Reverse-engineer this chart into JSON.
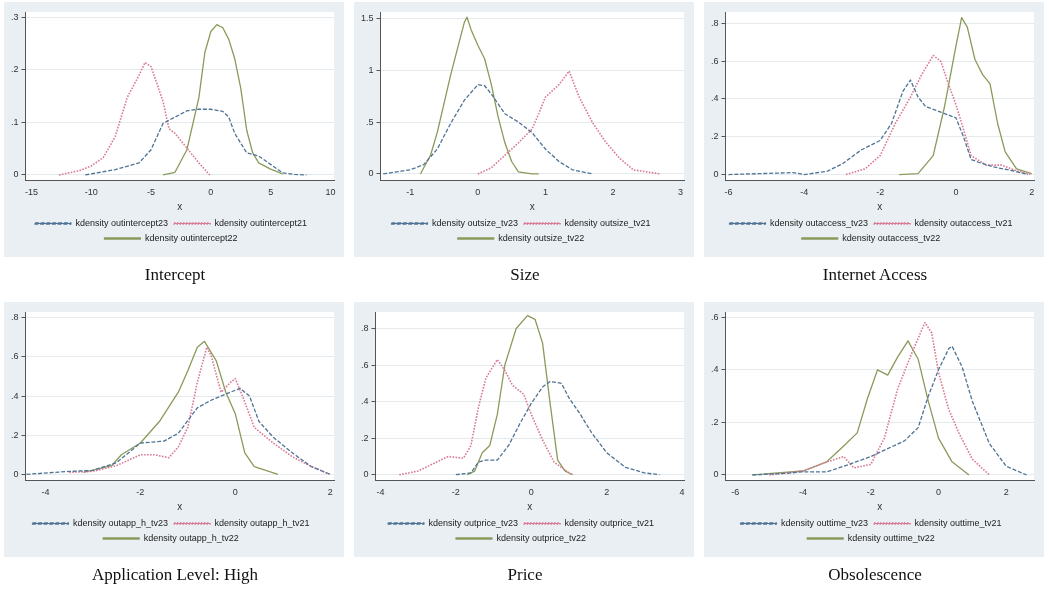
{
  "chart_data": [
    {
      "type": "line",
      "title": "Intercept",
      "xlabel": "x",
      "xlim": [
        -15.5,
        10.3
      ],
      "xticks": [
        -15,
        -10,
        -5,
        0,
        5,
        10
      ],
      "ylim": [
        -0.01,
        0.31
      ],
      "yticks": [
        0,
        {
          "value": 0.1,
          "label": ".1"
        },
        {
          "value": 0.2,
          "label": ".2"
        },
        {
          "value": 0.3,
          "label": ".3"
        }
      ],
      "grid": "y",
      "legend": "bottom",
      "series": [
        {
          "name": "kdensity outintercept23",
          "color": "#4f7394",
          "line_style": "dashed",
          "x": [
            -10.5,
            -8,
            -6,
            -5,
            -4,
            -3,
            -2,
            -1,
            0,
            1,
            1.5,
            2,
            3,
            4,
            5,
            6,
            7,
            8
          ],
          "values": [
            0,
            0.01,
            0.023,
            0.048,
            0.098,
            0.11,
            0.122,
            0.125,
            0.125,
            0.121,
            0.11,
            0.079,
            0.042,
            0.036,
            0.02,
            0.004,
            0.001,
            0
          ]
        },
        {
          "name": "kdensity outintercept21",
          "color": "#d97a94",
          "line_style": "dotted",
          "x": [
            -12.7,
            -11,
            -10,
            -9,
            -8,
            -7,
            -6,
            -5.5,
            -5,
            -4,
            -3.5,
            -3,
            -2,
            -1,
            -0.1
          ],
          "values": [
            0,
            0.008,
            0.017,
            0.033,
            0.073,
            0.147,
            0.19,
            0.214,
            0.206,
            0.14,
            0.088,
            0.079,
            0.051,
            0.023,
            0
          ]
        },
        {
          "name": "kdensity outintercept22",
          "color": "#8a9a5b",
          "line_style": "solid",
          "x": [
            -4,
            -3,
            -2,
            -1,
            -0.5,
            0,
            0.5,
            1,
            1.5,
            2,
            2.5,
            3,
            3.5,
            4,
            5,
            6
          ],
          "values": [
            0,
            0.005,
            0.048,
            0.147,
            0.233,
            0.273,
            0.286,
            0.28,
            0.258,
            0.221,
            0.165,
            0.085,
            0.042,
            0.023,
            0.011,
            0.002
          ]
        }
      ]
    },
    {
      "type": "line",
      "title": "Size",
      "xlabel": "x",
      "xlim": [
        -1.44,
        3.05
      ],
      "xticks": [
        -1,
        0,
        1,
        2,
        3
      ],
      "ylim": [
        -0.06,
        1.56
      ],
      "yticks": [
        0,
        {
          "value": 0.5,
          "label": ".5"
        },
        1,
        1.5
      ],
      "grid": "y",
      "legend": "bottom",
      "series": [
        {
          "name": "kdensity outsize_tv23",
          "color": "#4f7394",
          "line_style": "dashed",
          "x": [
            -1.4,
            -1,
            -0.8,
            -0.6,
            -0.4,
            -0.2,
            0,
            0.1,
            0.2,
            0.4,
            0.6,
            0.8,
            1,
            1.2,
            1.4,
            1.7
          ],
          "values": [
            0,
            0.04,
            0.09,
            0.24,
            0.49,
            0.71,
            0.86,
            0.85,
            0.77,
            0.58,
            0.5,
            0.4,
            0.24,
            0.12,
            0.04,
            0
          ]
        },
        {
          "name": "kdensity outsize_tv21",
          "color": "#d97a94",
          "line_style": "dotted",
          "x": [
            0,
            0.2,
            0.4,
            0.6,
            0.8,
            0.9,
            1,
            1.1,
            1.2,
            1.35,
            1.5,
            1.7,
            1.9,
            2.1,
            2.3,
            2.5,
            2.7
          ],
          "values": [
            0,
            0.06,
            0.18,
            0.3,
            0.43,
            0.58,
            0.74,
            0.8,
            0.86,
            0.99,
            0.74,
            0.49,
            0.3,
            0.15,
            0.04,
            0.02,
            0
          ]
        },
        {
          "name": "kdensity outsize_tv22",
          "color": "#8a9a5b",
          "line_style": "solid",
          "x": [
            -0.85,
            -0.7,
            -0.6,
            -0.4,
            -0.2,
            -0.16,
            -0.1,
            0,
            0.1,
            0.2,
            0.3,
            0.4,
            0.5,
            0.6,
            0.8,
            0.9
          ],
          "values": [
            0,
            0.18,
            0.4,
            0.96,
            1.46,
            1.51,
            1.39,
            1.24,
            1.11,
            0.86,
            0.55,
            0.3,
            0.12,
            0.02,
            0,
            0
          ]
        }
      ]
    },
    {
      "type": "line",
      "title": "Internet Access",
      "xlabel": "x",
      "xlim": [
        -6.08,
        2.06
      ],
      "xticks": [
        -6,
        -4,
        -2,
        0,
        2
      ],
      "ylim": [
        -0.03,
        0.86
      ],
      "yticks": [
        0,
        {
          "value": 0.2,
          "label": ".2"
        },
        {
          "value": 0.4,
          "label": ".4"
        },
        {
          "value": 0.6,
          "label": ".6"
        },
        {
          "value": 0.8,
          "label": ".8"
        }
      ],
      "grid": "y",
      "legend": "bottom",
      "series": [
        {
          "name": "kdensity outaccess_tv23",
          "color": "#4f7394",
          "line_style": "dashed",
          "x": [
            -6,
            -4.3,
            -4,
            -3.4,
            -3,
            -2.5,
            -2,
            -1.7,
            -1.4,
            -1.2,
            -1,
            -0.8,
            -0.4,
            0,
            0.2,
            0.4,
            0.6,
            1,
            1.5,
            1.9
          ],
          "values": [
            0,
            0.01,
            0,
            0.017,
            0.056,
            0.13,
            0.18,
            0.27,
            0.44,
            0.5,
            0.41,
            0.36,
            0.33,
            0.3,
            0.2,
            0.08,
            0.065,
            0.04,
            0.02,
            0
          ]
        },
        {
          "name": "kdensity outaccess_tv21",
          "color": "#d97a94",
          "line_style": "dotted",
          "x": [
            -2.9,
            -2.4,
            -2,
            -1.6,
            -1.2,
            -0.9,
            -0.6,
            -0.4,
            -0.2,
            0,
            0.2,
            0.4,
            0.8,
            1.2,
            1.6,
            2
          ],
          "values": [
            0,
            0.03,
            0.1,
            0.27,
            0.41,
            0.53,
            0.63,
            0.6,
            0.48,
            0.37,
            0.24,
            0.1,
            0.05,
            0.05,
            0.02,
            0
          ]
        },
        {
          "name": "kdensity outaccess_tv22",
          "color": "#8a9a5b",
          "line_style": "solid",
          "x": [
            -1.5,
            -1,
            -0.6,
            -0.3,
            0,
            0.15,
            0.3,
            0.5,
            0.7,
            0.9,
            1.1,
            1.3,
            1.6,
            2
          ],
          "values": [
            0,
            0.005,
            0.1,
            0.36,
            0.68,
            0.83,
            0.78,
            0.61,
            0.53,
            0.48,
            0.27,
            0.12,
            0.03,
            0.005
          ]
        }
      ]
    },
    {
      "type": "line",
      "title": "Application Level: High",
      "xlabel": "x",
      "xlim": [
        -4.42,
        2.08
      ],
      "xticks": [
        -4,
        -2,
        0,
        2
      ],
      "ylim": [
        -0.03,
        0.83
      ],
      "yticks": [
        0,
        {
          "value": 0.2,
          "label": ".2"
        },
        {
          "value": 0.4,
          "label": ".4"
        },
        {
          "value": 0.6,
          "label": ".6"
        },
        {
          "value": 0.8,
          "label": ".8"
        }
      ],
      "grid": "y",
      "legend": "bottom",
      "series": [
        {
          "name": "kdensity outapp_h_tv23",
          "color": "#4f7394",
          "line_style": "dashed",
          "x": [
            -4.4,
            -3.5,
            -3,
            -2.5,
            -2,
            -1.5,
            -1.2,
            -0.8,
            -0.5,
            -0.2,
            0.1,
            0.3,
            0.5,
            0.8,
            1.2,
            1.6,
            2
          ],
          "values": [
            0,
            0.015,
            0.02,
            0.06,
            0.16,
            0.17,
            0.21,
            0.34,
            0.38,
            0.41,
            0.44,
            0.4,
            0.27,
            0.19,
            0.11,
            0.04,
            0
          ]
        },
        {
          "name": "kdensity outapp_h_tv21",
          "color": "#d97a94",
          "line_style": "dotted",
          "x": [
            -3.5,
            -3,
            -2.5,
            -2,
            -1.7,
            -1.4,
            -1.2,
            -1,
            -0.8,
            -0.6,
            -0.5,
            -0.3,
            -0.1,
            0,
            0.2,
            0.4,
            0.8,
            1.2,
            1.6,
            2
          ],
          "values": [
            0.01,
            0.015,
            0.045,
            0.1,
            0.1,
            0.085,
            0.14,
            0.24,
            0.47,
            0.65,
            0.6,
            0.42,
            0.47,
            0.49,
            0.37,
            0.24,
            0.16,
            0.09,
            0.04,
            0
          ]
        },
        {
          "name": "kdensity outapp_h_tv22",
          "color": "#8a9a5b",
          "line_style": "solid",
          "x": [
            -3.2,
            -2.6,
            -2.4,
            -2,
            -1.6,
            -1.2,
            -1,
            -0.8,
            -0.65,
            -0.4,
            -0.2,
            0,
            0.2,
            0.4,
            0.9
          ],
          "values": [
            0.01,
            0.045,
            0.1,
            0.16,
            0.27,
            0.42,
            0.53,
            0.65,
            0.68,
            0.58,
            0.42,
            0.31,
            0.11,
            0.04,
            0
          ]
        }
      ]
    },
    {
      "type": "line",
      "title": "Price",
      "xlabel": "x",
      "xlim": [
        -4.13,
        4.05
      ],
      "xticks": [
        -4,
        -2,
        0,
        2,
        4
      ],
      "ylim": [
        -0.03,
        0.89
      ],
      "yticks": [
        0,
        {
          "value": 0.2,
          "label": ".2"
        },
        {
          "value": 0.4,
          "label": ".4"
        },
        {
          "value": 0.6,
          "label": ".6"
        },
        {
          "value": 0.8,
          "label": ".8"
        }
      ],
      "grid": "y",
      "legend": "bottom",
      "series": [
        {
          "name": "kdensity outprice_tv23",
          "color": "#4f7394",
          "line_style": "dashed",
          "x": [
            -2,
            -1.6,
            -1.4,
            -1.2,
            -0.9,
            -0.6,
            -0.3,
            0,
            0.3,
            0.5,
            0.8,
            1,
            1.3,
            1.6,
            2,
            2.5,
            3,
            3.4
          ],
          "values": [
            0,
            0.01,
            0.07,
            0.08,
            0.08,
            0.16,
            0.28,
            0.39,
            0.48,
            0.51,
            0.5,
            0.42,
            0.33,
            0.23,
            0.12,
            0.04,
            0.01,
            0
          ]
        },
        {
          "name": "kdensity outprice_tv21",
          "color": "#d97a94",
          "line_style": "dotted",
          "x": [
            -3.5,
            -3,
            -2.6,
            -2.2,
            -1.8,
            -1.6,
            -1.4,
            -1.2,
            -0.9,
            -0.7,
            -0.5,
            -0.2,
            0,
            0.3,
            0.6,
            1,
            1.1
          ],
          "values": [
            0,
            0.02,
            0.06,
            0.1,
            0.09,
            0.16,
            0.37,
            0.53,
            0.63,
            0.57,
            0.49,
            0.44,
            0.33,
            0.19,
            0.07,
            0.01,
            0
          ]
        },
        {
          "name": "kdensity outprice_tv22",
          "color": "#8a9a5b",
          "line_style": "solid",
          "x": [
            -1.7,
            -1.5,
            -1.3,
            -1.1,
            -0.9,
            -0.7,
            -0.4,
            -0.1,
            0.1,
            0.3,
            0.5,
            0.7,
            0.9,
            1.1
          ],
          "values": [
            0,
            0.02,
            0.12,
            0.16,
            0.33,
            0.6,
            0.8,
            0.87,
            0.85,
            0.72,
            0.39,
            0.08,
            0.02,
            0
          ]
        }
      ]
    },
    {
      "type": "line",
      "title": "Obsolescence",
      "xlabel": "x",
      "xlim": [
        -6.29,
        2.82
      ],
      "xticks": [
        -6,
        -4,
        -2,
        0,
        2
      ],
      "ylim": [
        -0.02,
        0.62
      ],
      "yticks": [
        0,
        {
          "value": 0.2,
          "label": ".2"
        },
        {
          "value": 0.4,
          "label": ".4"
        },
        {
          "value": 0.6,
          "label": ".6"
        }
      ],
      "grid": "y",
      "legend": "bottom",
      "series": [
        {
          "name": "kdensity outtime_tv23",
          "color": "#4f7394",
          "line_style": "dashed",
          "x": [
            -5.5,
            -4.5,
            -4,
            -3.3,
            -2.8,
            -2,
            -1.5,
            -1,
            -0.6,
            -0.3,
            0,
            0.3,
            0.4,
            0.7,
            1,
            1.5,
            2,
            2.6
          ],
          "values": [
            0,
            0.006,
            0.012,
            0.012,
            0.033,
            0.07,
            0.1,
            0.13,
            0.18,
            0.3,
            0.4,
            0.48,
            0.49,
            0.41,
            0.28,
            0.12,
            0.033,
            0
          ]
        },
        {
          "name": "kdensity outtime_tv21",
          "color": "#d97a94",
          "line_style": "dotted",
          "x": [
            -5,
            -4,
            -3.4,
            -2.8,
            -2.5,
            -2,
            -1.6,
            -1.2,
            -0.8,
            -0.4,
            -0.2,
            0,
            0.3,
            0.6,
            1,
            1.5
          ],
          "values": [
            0,
            0.015,
            0.045,
            0.07,
            0.027,
            0.04,
            0.14,
            0.33,
            0.46,
            0.58,
            0.54,
            0.39,
            0.25,
            0.16,
            0.06,
            0
          ]
        },
        {
          "name": "kdensity outtime_tv22",
          "color": "#8a9a5b",
          "line_style": "solid",
          "x": [
            -5.5,
            -4,
            -3.3,
            -2.8,
            -2.4,
            -2.1,
            -1.8,
            -1.5,
            -1.2,
            -0.9,
            -0.6,
            -0.3,
            0,
            0.4,
            0.9
          ],
          "values": [
            0,
            0.015,
            0.05,
            0.11,
            0.16,
            0.29,
            0.4,
            0.38,
            0.45,
            0.51,
            0.44,
            0.28,
            0.14,
            0.05,
            0
          ]
        }
      ]
    }
  ]
}
